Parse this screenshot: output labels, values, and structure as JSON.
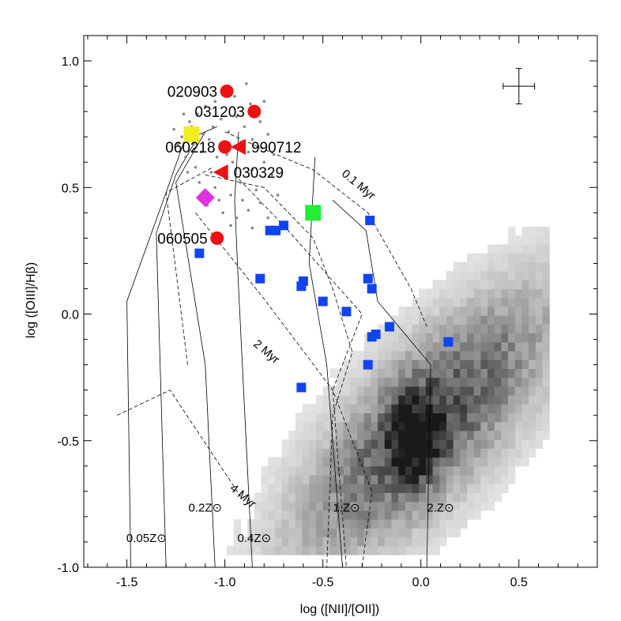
{
  "chart_data": {
    "type": "scatter",
    "title": "",
    "xlabel": "log ([NII]/[OII])",
    "ylabel": "log ([OIII]/Hβ)",
    "xlim": [
      -1.72,
      0.9
    ],
    "ylim": [
      -1.0,
      1.1
    ],
    "xticks": [
      -1.5,
      -1.0,
      -0.5,
      0.0,
      0.5
    ],
    "xtick_labels": [
      "-1.5",
      "-1.0",
      "-0.5",
      "0.0",
      "0.5"
    ],
    "yticks": [
      -1.0,
      -0.5,
      0.0,
      0.5,
      1.0
    ],
    "ytick_labels": [
      "-1.0",
      "-0.5",
      "0.0",
      "0.5",
      "1.0"
    ],
    "grb_hosts": [
      {
        "label": "020903",
        "x": -0.99,
        "y": 0.88
      },
      {
        "label": "031203",
        "x": -0.85,
        "y": 0.8
      },
      {
        "label": "060218",
        "x": -1.0,
        "y": 0.66
      },
      {
        "label": "060505",
        "x": -1.04,
        "y": 0.3
      }
    ],
    "grb_triangles": [
      {
        "label": "990712",
        "x": -0.93,
        "y": 0.66
      },
      {
        "label": "030329",
        "x": -1.02,
        "y": 0.56
      }
    ],
    "yellow_square": {
      "x": -1.17,
      "y": 0.71
    },
    "green_square": {
      "x": -0.55,
      "y": 0.4
    },
    "magenta_diamond": {
      "x": -1.1,
      "y": 0.46
    },
    "blue_squares": [
      [
        -1.13,
        0.24
      ],
      [
        -0.77,
        0.33
      ],
      [
        -0.74,
        0.33
      ],
      [
        -0.7,
        0.35
      ],
      [
        -0.26,
        0.37
      ],
      [
        -0.82,
        0.14
      ],
      [
        -0.6,
        0.13
      ],
      [
        -0.61,
        0.11
      ],
      [
        -0.27,
        0.14
      ],
      [
        -0.25,
        0.1
      ],
      [
        -0.5,
        0.05
      ],
      [
        -0.38,
        0.01
      ],
      [
        -0.16,
        -0.05
      ],
      [
        -0.23,
        -0.08
      ],
      [
        -0.25,
        -0.09
      ],
      [
        -0.27,
        -0.2
      ],
      [
        0.14,
        -0.11
      ],
      [
        -0.61,
        -0.29
      ]
    ],
    "gray_points": [
      [
        -1.18,
        0.76
      ],
      [
        -1.14,
        0.79
      ],
      [
        -1.1,
        0.82
      ],
      [
        -1.06,
        0.74
      ],
      [
        -1.22,
        0.7
      ],
      [
        -1.16,
        0.67
      ],
      [
        -1.08,
        0.69
      ],
      [
        -1.02,
        0.77
      ],
      [
        -0.98,
        0.72
      ],
      [
        -0.94,
        0.78
      ],
      [
        -0.9,
        0.74
      ],
      [
        -0.86,
        0.69
      ],
      [
        -0.82,
        0.76
      ],
      [
        -0.8,
        0.84
      ],
      [
        -0.78,
        0.71
      ],
      [
        -0.88,
        0.64
      ],
      [
        -0.96,
        0.6
      ],
      [
        -1.04,
        0.62
      ],
      [
        -1.12,
        0.64
      ],
      [
        -1.2,
        0.62
      ],
      [
        -1.24,
        0.67
      ],
      [
        -1.15,
        0.58
      ],
      [
        -1.07,
        0.56
      ],
      [
        -0.99,
        0.54
      ],
      [
        -0.92,
        0.52
      ],
      [
        -0.86,
        0.57
      ],
      [
        -0.8,
        0.6
      ],
      [
        -0.76,
        0.55
      ],
      [
        -0.84,
        0.49
      ],
      [
        -0.91,
        0.45
      ],
      [
        -0.97,
        0.47
      ],
      [
        -1.05,
        0.5
      ],
      [
        -1.13,
        0.52
      ],
      [
        -1.09,
        0.43
      ],
      [
        -1.01,
        0.4
      ],
      [
        -0.94,
        0.38
      ],
      [
        -0.88,
        0.41
      ],
      [
        -0.82,
        0.44
      ],
      [
        -0.78,
        0.38
      ],
      [
        -0.86,
        0.34
      ],
      [
        -1.17,
        0.74
      ],
      [
        -1.11,
        0.71
      ],
      [
        -1.05,
        0.84
      ],
      [
        -0.95,
        0.86
      ],
      [
        -0.87,
        0.83
      ],
      [
        -0.92,
        0.68
      ],
      [
        -1.19,
        0.56
      ],
      [
        -1.03,
        0.45
      ],
      [
        -0.97,
        0.35
      ],
      [
        -0.73,
        0.47
      ],
      [
        -0.75,
        0.63
      ],
      [
        -1.26,
        0.73
      ],
      [
        -1.21,
        0.79
      ],
      [
        -0.89,
        0.91
      ],
      [
        -0.83,
        0.66
      ],
      [
        -0.99,
        0.63
      ]
    ],
    "curves": {
      "solid": [
        [
          [
            -1.48,
            -1.0
          ],
          [
            -1.5,
            0.05
          ],
          [
            -1.3,
            0.48
          ],
          [
            -1.2,
            0.7
          ],
          [
            -1.13,
            0.73
          ]
        ],
        [
          [
            -1.3,
            -1.0
          ],
          [
            -1.35,
            0.32
          ],
          [
            -1.25,
            0.55
          ],
          [
            -1.13,
            0.71
          ],
          [
            -1.04,
            0.74
          ]
        ],
        [
          [
            -1.05,
            -1.0
          ],
          [
            -1.1,
            -0.2
          ],
          [
            -1.25,
            0.52
          ],
          [
            -1.1,
            0.72
          ]
        ],
        [
          [
            -0.86,
            -1.0
          ],
          [
            -0.93,
            0.1
          ],
          [
            -0.95,
            0.45
          ],
          [
            -0.93,
            0.72
          ]
        ],
        [
          [
            -0.4,
            -1.0
          ],
          [
            -0.48,
            -0.2
          ],
          [
            -0.57,
            0.2
          ],
          [
            -0.54,
            0.62
          ]
        ],
        [
          [
            0.03,
            -1.0
          ],
          [
            0.05,
            -0.2
          ],
          [
            -0.22,
            0.05
          ],
          [
            -0.28,
            0.33
          ],
          [
            -0.45,
            0.45
          ]
        ]
      ],
      "dashed": [
        [
          [
            -1.55,
            -0.4
          ],
          [
            -1.28,
            -0.3
          ],
          [
            -0.92,
            -0.72
          ]
        ],
        [
          [
            -1.19,
            -0.2
          ],
          [
            -1.3,
            0.48
          ],
          [
            -1.06,
            0.58
          ]
        ],
        [
          [
            -1.15,
            0.4
          ],
          [
            -0.8,
            0.06
          ],
          [
            -0.45,
            -0.3
          ],
          [
            -0.25,
            -0.7
          ],
          [
            -0.3,
            -1.0
          ]
        ],
        [
          [
            -0.95,
            0.55
          ],
          [
            -0.7,
            0.35
          ],
          [
            -0.3,
            0.0
          ],
          [
            -0.45,
            -0.3
          ],
          [
            -0.38,
            -1.0
          ]
        ],
        [
          [
            -1.0,
            0.72
          ],
          [
            -0.8,
            0.65
          ],
          [
            -0.55,
            0.57
          ],
          [
            -0.27,
            0.4
          ],
          [
            -0.05,
            0.1
          ],
          [
            0.03,
            -0.05
          ]
        ],
        [
          [
            -1.1,
            0.55
          ],
          [
            -0.8,
            0.5
          ],
          [
            -0.55,
            0.3
          ],
          [
            -0.45,
            0.1
          ],
          [
            -0.35,
            -0.15
          ],
          [
            -0.45,
            -0.4
          ],
          [
            -0.48,
            -1.0
          ]
        ]
      ]
    },
    "annotations": [
      {
        "text": "0.1 Myr",
        "x": -0.33,
        "y": 0.5,
        "rotate": 40
      },
      {
        "text": "2 Myr",
        "x": -0.8,
        "y": -0.16,
        "rotate": 40
      },
      {
        "text": "4 Myr",
        "x": -0.92,
        "y": -0.73,
        "rotate": 40
      },
      {
        "text": "0.05Z⊙",
        "x": -1.4,
        "y": -0.9,
        "rotate": 0
      },
      {
        "text": "0.2Z⊙",
        "x": -1.1,
        "y": -0.78,
        "rotate": 0
      },
      {
        "text": "0.4Z⊙",
        "x": -0.85,
        "y": -0.9,
        "rotate": 0
      },
      {
        "text": "1.Z⊙",
        "x": -0.38,
        "y": -0.78,
        "rotate": 0
      },
      {
        "text": "2.Z⊙",
        "x": 0.1,
        "y": -0.78,
        "rotate": 0
      }
    ],
    "error_bar": {
      "x": 0.5,
      "y": 0.9,
      "dx": 0.08,
      "dy": 0.07
    },
    "colors": {
      "circle": "#ee1111",
      "triangle": "#ee1111",
      "blue_square": "#1144ee",
      "yellow_square": "#f2ee22",
      "green_square": "#22ee33",
      "diamond": "#dd33dd",
      "gray_point": "#888888"
    }
  }
}
